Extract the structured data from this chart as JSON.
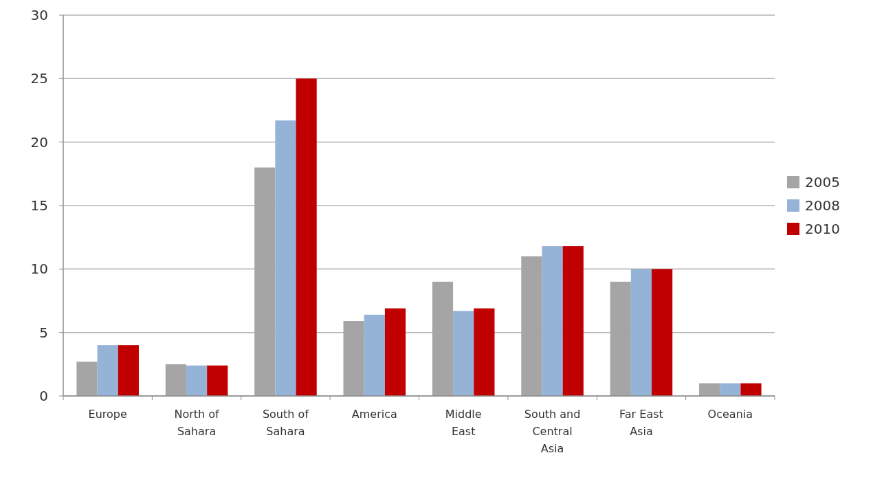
{
  "chart_data": {
    "type": "bar",
    "categories": [
      "Europe",
      "North of Sahara",
      "South of Sahara",
      "America",
      "Middle East",
      "South and Central Asia",
      "Far East Asia",
      "Oceania"
    ],
    "series": [
      {
        "name": "2005",
        "color": "#a5a5a5",
        "values": [
          2.7,
          2.5,
          18,
          5.9,
          9.0,
          11.0,
          9.0,
          1.0
        ]
      },
      {
        "name": "2008",
        "color": "#95b3d7",
        "values": [
          4.0,
          2.4,
          21.7,
          6.4,
          6.7,
          11.8,
          10.0,
          1.0
        ]
      },
      {
        "name": "2010",
        "color": "#c00000",
        "values": [
          4.0,
          2.4,
          25,
          6.9,
          6.9,
          11.8,
          10.0,
          1.0
        ]
      }
    ],
    "ylim": [
      0,
      30
    ],
    "yticks": [
      0,
      5,
      10,
      15,
      20,
      25,
      30
    ],
    "grid": "y",
    "legend": "right"
  }
}
